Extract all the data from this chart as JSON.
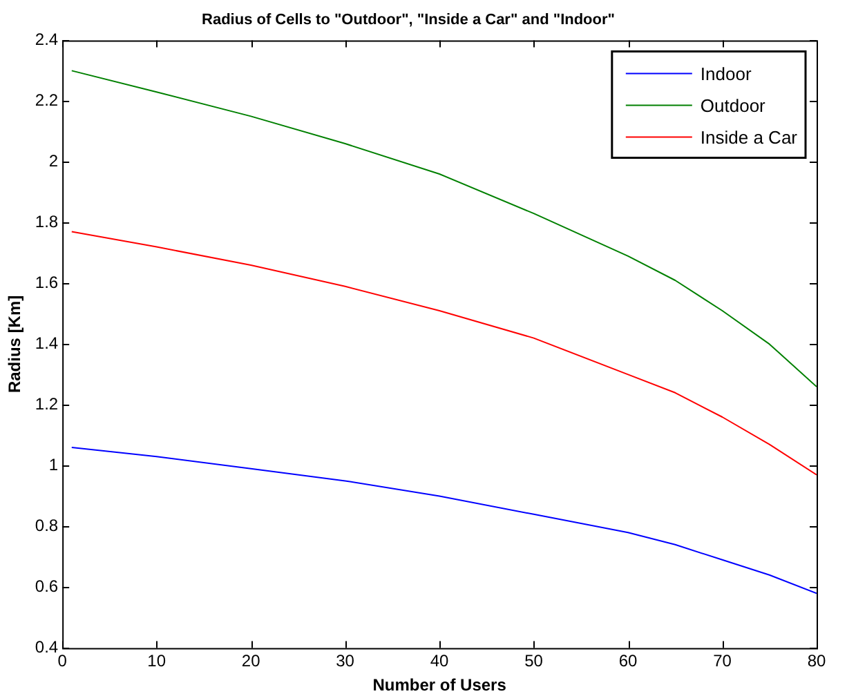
{
  "chart_data": {
    "type": "line",
    "title": "Radius of Cells to \"Outdoor\", \"Inside a Car\" and \"Indoor\"",
    "xlabel": "Number of Users",
    "ylabel": "Radius [Km]",
    "x": [
      1,
      10,
      20,
      30,
      40,
      50,
      60,
      65,
      70,
      75,
      80
    ],
    "series": [
      {
        "name": "Indoor",
        "color": "#0000ff",
        "values": [
          1.06,
          1.03,
          0.99,
          0.95,
          0.9,
          0.84,
          0.78,
          0.74,
          0.69,
          0.64,
          0.58
        ]
      },
      {
        "name": "Outdoor",
        "color": "#008000",
        "values": [
          2.3,
          2.23,
          2.15,
          2.06,
          1.96,
          1.83,
          1.69,
          1.61,
          1.51,
          1.4,
          1.26
        ]
      },
      {
        "name": "Inside a Car",
        "color": "#ff0000",
        "values": [
          1.77,
          1.72,
          1.66,
          1.59,
          1.51,
          1.42,
          1.3,
          1.24,
          1.16,
          1.07,
          0.97
        ]
      }
    ],
    "xlim": [
      0,
      80
    ],
    "xticks": [
      0,
      10,
      20,
      30,
      40,
      50,
      60,
      70,
      80
    ],
    "ylim": [
      0.4,
      2.4
    ],
    "yticks": [
      0.4,
      0.6,
      0.8,
      1,
      1.2,
      1.4,
      1.6,
      1.8,
      2,
      2.2,
      2.4
    ],
    "grid": false,
    "legend": "top right",
    "marker": "none",
    "line_style": "solid"
  }
}
